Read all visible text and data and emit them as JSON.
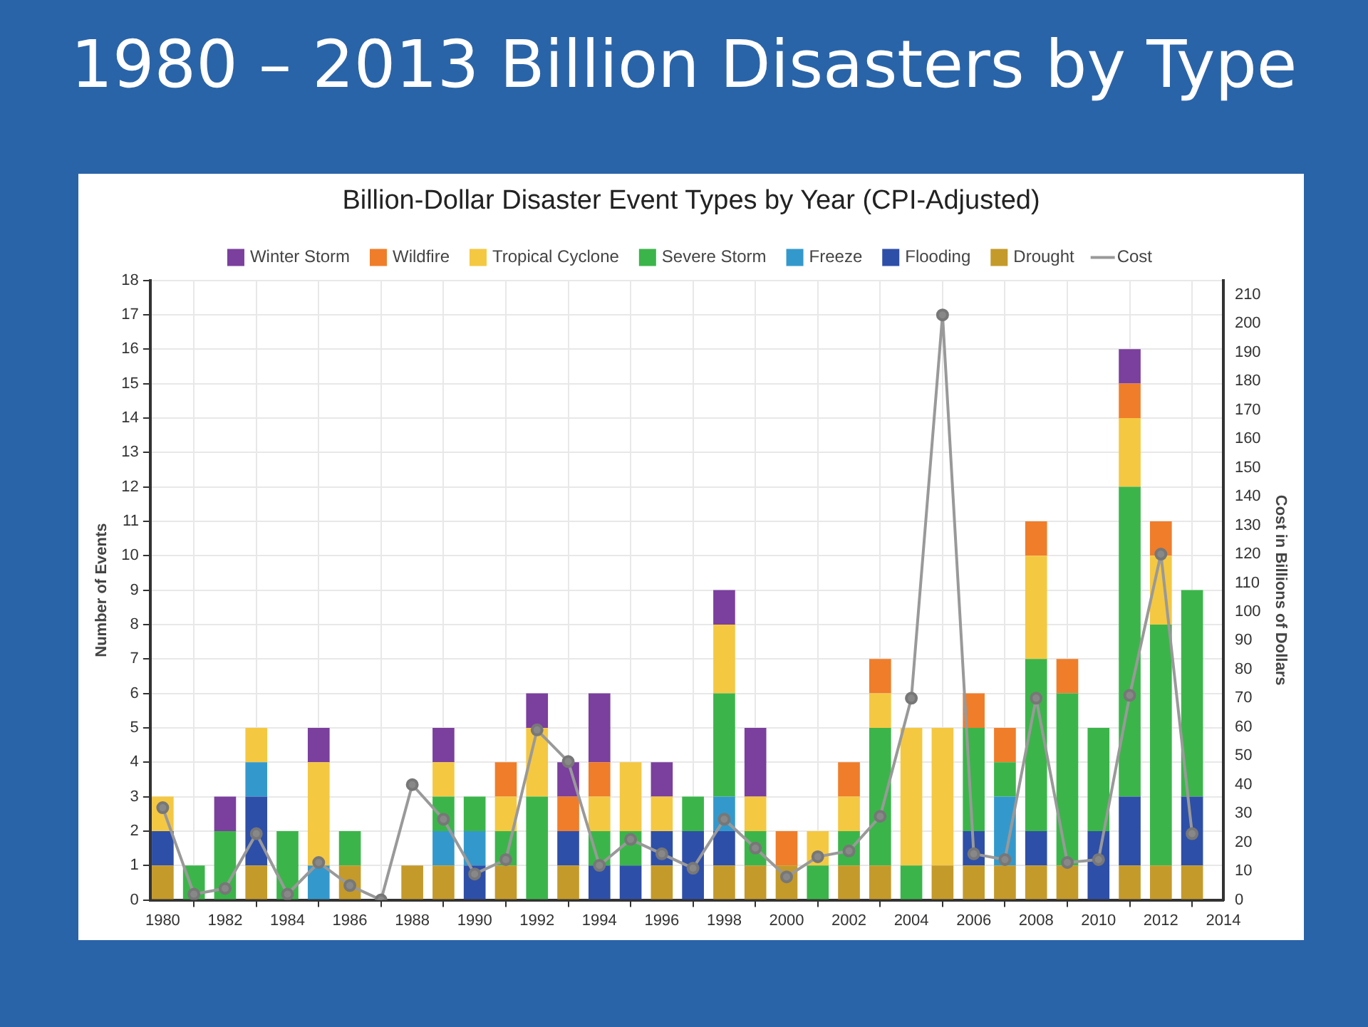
{
  "chart_data": {
    "type": "bar",
    "title": "1980 – 2013 Billion Disasters by Type",
    "subtitle": "Billion-Dollar Disaster Event Types by Year (CPI-Adjusted)",
    "ylabel": "Number of Events",
    "y2label": "Cost in Billions of Dollars",
    "stacked": true,
    "grid": true,
    "legend": "top",
    "marker": "circle",
    "x": [
      1980,
      1981,
      1982,
      1983,
      1984,
      1985,
      1986,
      1987,
      1988,
      1989,
      1990,
      1991,
      1992,
      1993,
      1994,
      1995,
      1996,
      1997,
      1998,
      1999,
      2000,
      2001,
      2002,
      2003,
      2004,
      2005,
      2006,
      2007,
      2008,
      2009,
      2010,
      2011,
      2012,
      2013
    ],
    "xlim": [
      1979.6,
      2014
    ],
    "xticks": [
      1980,
      1982,
      1984,
      1986,
      1988,
      1990,
      1992,
      1994,
      1996,
      1998,
      2000,
      2002,
      2004,
      2006,
      2008,
      2010,
      2012,
      2014
    ],
    "ylim": [
      0,
      18
    ],
    "yticks": [
      0,
      1,
      2,
      3,
      4,
      5,
      6,
      7,
      8,
      9,
      10,
      11,
      12,
      13,
      14,
      15,
      16,
      17,
      18
    ],
    "y2lim": [
      0,
      215
    ],
    "y2ticks": [
      0,
      10,
      20,
      30,
      40,
      50,
      60,
      70,
      80,
      90,
      100,
      110,
      120,
      130,
      140,
      150,
      160,
      170,
      180,
      190,
      200,
      210
    ],
    "series": [
      {
        "name": "Drought",
        "color": "#c49a2a",
        "values": [
          1,
          null,
          null,
          1,
          null,
          null,
          1,
          null,
          1,
          1,
          null,
          1,
          null,
          1,
          null,
          null,
          1,
          null,
          1,
          1,
          1,
          null,
          1,
          1,
          null,
          1,
          1,
          1,
          1,
          1,
          null,
          1,
          1,
          1
        ]
      },
      {
        "name": "Flooding",
        "color": "#2e4fa8",
        "values": [
          1,
          null,
          null,
          2,
          null,
          null,
          null,
          null,
          null,
          null,
          1,
          null,
          null,
          1,
          1,
          1,
          1,
          2,
          1,
          null,
          null,
          null,
          null,
          null,
          null,
          null,
          1,
          null,
          1,
          null,
          2,
          2,
          null,
          2
        ]
      },
      {
        "name": "Freeze",
        "color": "#3399cc",
        "values": [
          null,
          null,
          null,
          1,
          null,
          1,
          null,
          null,
          null,
          1,
          1,
          null,
          null,
          null,
          null,
          null,
          null,
          null,
          1,
          null,
          null,
          null,
          null,
          null,
          null,
          null,
          null,
          2,
          null,
          null,
          null,
          null,
          null,
          null
        ]
      },
      {
        "name": "Severe Storm",
        "color": "#3bb54a",
        "values": [
          null,
          1,
          2,
          null,
          2,
          null,
          1,
          null,
          null,
          1,
          1,
          1,
          3,
          null,
          1,
          1,
          null,
          1,
          3,
          1,
          null,
          1,
          1,
          4,
          1,
          null,
          3,
          1,
          5,
          5,
          3,
          9,
          7,
          6
        ]
      },
      {
        "name": "Tropical Cyclone",
        "color": "#f5c842",
        "values": [
          1,
          null,
          null,
          1,
          null,
          3,
          null,
          null,
          null,
          1,
          null,
          1,
          2,
          null,
          1,
          2,
          1,
          null,
          2,
          1,
          null,
          1,
          1,
          1,
          4,
          4,
          null,
          null,
          3,
          null,
          null,
          2,
          2,
          null
        ]
      },
      {
        "name": "Wildfire",
        "color": "#f07d2a",
        "values": [
          null,
          null,
          null,
          null,
          null,
          null,
          null,
          null,
          null,
          null,
          null,
          1,
          null,
          1,
          1,
          null,
          null,
          null,
          null,
          null,
          1,
          null,
          1,
          1,
          null,
          null,
          1,
          1,
          1,
          1,
          null,
          1,
          1,
          null
        ]
      },
      {
        "name": "Winter Storm",
        "color": "#7b3f9e",
        "values": [
          null,
          null,
          1,
          null,
          null,
          1,
          null,
          null,
          null,
          1,
          null,
          null,
          1,
          1,
          2,
          null,
          1,
          null,
          1,
          2,
          null,
          null,
          null,
          null,
          null,
          null,
          null,
          null,
          null,
          null,
          null,
          1,
          null,
          null
        ]
      },
      {
        "name": "Cost",
        "type": "line",
        "axis": "y2",
        "color": "#999999",
        "values": [
          32,
          2,
          4,
          23,
          2,
          13,
          5,
          0,
          40,
          28,
          9,
          14,
          59,
          48,
          12,
          21,
          16,
          11,
          28,
          18,
          8,
          15,
          17,
          29,
          70,
          203,
          16,
          14,
          70,
          13,
          14,
          71,
          120,
          23
        ]
      }
    ]
  }
}
